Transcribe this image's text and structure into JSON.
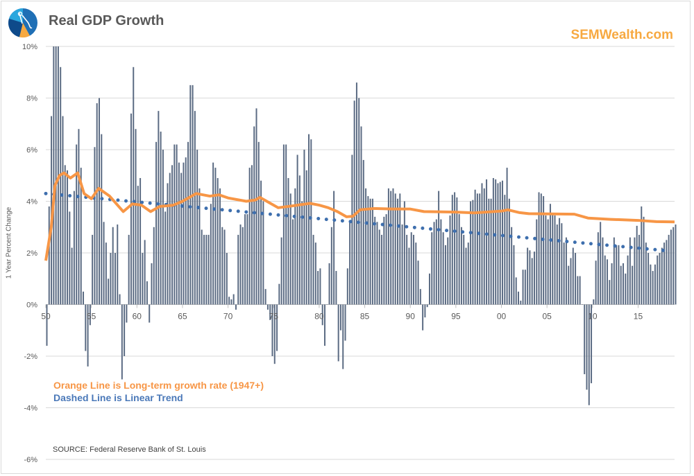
{
  "header": {
    "title": "Real GDP Growth",
    "brand": "SEMWealth.com",
    "logo_icon": "pie-chart-compass-logo"
  },
  "legend": {
    "orange_note": "Orange Line is Long-term growth rate (1947+)",
    "blue_note": "Dashed Line is Linear Trend"
  },
  "source": "SOURCE:  Federal Reserve Bank of St. Louis",
  "colors": {
    "bars": "#5B6B83",
    "long_term_line": "#F79646",
    "trend_dots": "#3E6FAE",
    "brand": "#F7A941",
    "grid": "#d9d9d9"
  },
  "chart_data": {
    "type": "bar",
    "title": "Real GDP Growth",
    "ylabel": "1 Year Percent Change",
    "xlabel": "",
    "ylim": [
      -6,
      10
    ],
    "xlim": [
      1950,
      2019
    ],
    "grid": true,
    "y_ticks": [
      "-6%",
      "-4%",
      "-2%",
      "0%",
      "2%",
      "4%",
      "6%",
      "8%",
      "10%"
    ],
    "y_tick_values": [
      -6,
      -4,
      -2,
      0,
      2,
      4,
      6,
      8,
      10
    ],
    "x_ticks": [
      "50",
      "55",
      "60",
      "65",
      "70",
      "75",
      "80",
      "85",
      "90",
      "95",
      "00",
      "05",
      "10",
      "15"
    ],
    "x_tick_values": [
      1950,
      1955,
      1960,
      1965,
      1970,
      1975,
      1980,
      1985,
      1990,
      1995,
      2000,
      2005,
      2010,
      2015
    ],
    "quarterly_values": {
      "1950": [
        -1.6,
        3.8,
        7.3,
        12.0
      ],
      "1951": [
        11.1,
        10.5,
        9.2,
        7.3
      ],
      "1952": [
        5.4,
        5.2,
        3.6,
        2.2
      ],
      "1953": [
        4.4,
        6.2,
        6.8,
        5.3
      ],
      "1954": [
        0.5,
        -1.8,
        -2.4,
        -0.8
      ],
      "1955": [
        2.7,
        6.1,
        7.8,
        8.0
      ],
      "1956": [
        6.6,
        3.2,
        2.4,
        1.0
      ],
      "1957": [
        2.0,
        3.0,
        2.0,
        3.1
      ],
      "1958": [
        0.4,
        -2.9,
        -2.0,
        -0.7
      ],
      "1959": [
        2.7,
        7.4,
        9.2,
        6.8
      ],
      "1960": [
        4.6,
        4.9,
        2.0,
        2.5
      ],
      "1961": [
        0.9,
        -0.7,
        1.6,
        3.0
      ],
      "1962": [
        6.3,
        7.5,
        6.7,
        6.0
      ],
      "1963": [
        3.6,
        4.7,
        5.1,
        5.4
      ],
      "1964": [
        6.2,
        6.2,
        5.5,
        5.1
      ],
      "1965": [
        5.5,
        5.7,
        6.3,
        8.5
      ],
      "1966": [
        8.5,
        7.5,
        6.0,
        4.5
      ],
      "1967": [
        2.9,
        2.7,
        2.7,
        2.7
      ],
      "1968": [
        3.9,
        5.5,
        5.3,
        4.9
      ],
      "1969": [
        4.5,
        3.0,
        2.9,
        2.0
      ],
      "1970": [
        0.3,
        0.2,
        0.4,
        -0.2
      ],
      "1971": [
        2.7,
        3.1,
        3.0,
        3.5
      ],
      "1972": [
        3.5,
        5.3,
        5.4,
        6.9
      ],
      "1973": [
        7.6,
        6.3,
        4.8,
        4.0
      ],
      "1974": [
        0.6,
        -0.2,
        -0.6,
        -2.0
      ],
      "1975": [
        -2.3,
        -1.8,
        0.8,
        2.6
      ],
      "1976": [
        6.2,
        6.2,
        4.9,
        4.3
      ],
      "1977": [
        3.3,
        4.5,
        5.8,
        5.0
      ],
      "1978": [
        4.0,
        6.0,
        5.2,
        6.6
      ],
      "1979": [
        6.4,
        2.7,
        2.4,
        1.3
      ],
      "1980": [
        1.4,
        -0.8,
        -1.6,
        0.0
      ],
      "1981": [
        1.6,
        3.0,
        4.4,
        1.3
      ],
      "1982": [
        -2.2,
        -1.0,
        -2.5,
        -1.4
      ],
      "1983": [
        1.4,
        3.2,
        5.8,
        7.9
      ],
      "1984": [
        8.6,
        8.0,
        6.9,
        5.6
      ],
      "1985": [
        4.5,
        4.2,
        4.1,
        4.1
      ],
      "1986": [
        3.4,
        3.2,
        2.9,
        2.7
      ],
      "1987": [
        3.4,
        3.5,
        4.5,
        4.4
      ],
      "1988": [
        4.5,
        4.3,
        4.1,
        4.3
      ],
      "1989": [
        3.1,
        4.0,
        2.7,
        2.2
      ],
      "1990": [
        2.8,
        2.7,
        2.4,
        1.7
      ],
      "1991": [
        0.6,
        -1.0,
        -0.5,
        -0.1
      ],
      "1992": [
        1.2,
        2.8,
        3.2,
        3.3
      ],
      "1993": [
        4.4,
        3.3,
        2.8,
        2.3
      ],
      "1994": [
        2.6,
        3.45,
        4.25,
        4.35
      ],
      "1995": [
        4.15,
        3.5,
        3.0,
        2.7
      ],
      "1996": [
        2.2,
        2.4,
        4.0,
        4.05
      ],
      "1997": [
        4.45,
        4.3,
        4.3,
        4.7
      ],
      "1998": [
        4.5,
        4.85,
        4.1,
        4.1
      ],
      "1999": [
        4.9,
        4.85,
        4.7,
        4.75
      ],
      "2000": [
        4.8,
        4.25,
        5.3,
        4.1
      ],
      "2001": [
        3.0,
        2.3,
        1.05,
        0.5
      ],
      "2002": [
        0.15,
        1.35,
        1.35,
        2.2
      ],
      "2003": [
        2.1,
        1.8,
        2.05,
        3.3
      ],
      "2004": [
        4.35,
        4.3,
        4.2,
        3.45
      ],
      "2005": [
        3.3,
        3.9,
        3.5,
        3.45
      ],
      "2006": [
        3.1,
        3.35,
        3.15,
        2.4
      ],
      "2007": [
        2.6,
        1.5,
        1.8,
        2.2
      ],
      "2008": [
        2.0,
        1.1,
        1.1,
        0.0
      ],
      "2009": [
        -2.7,
        -3.3,
        -3.9,
        -3.05
      ],
      "2010": [
        0.2,
        1.7,
        2.8,
        3.2
      ],
      "2011": [
        2.6,
        1.9,
        1.75,
        0.95
      ],
      "2012": [
        1.6,
        2.6,
        2.3,
        2.3
      ],
      "2013": [
        1.5,
        1.6,
        1.2,
        1.9
      ],
      "2014": [
        2.6,
        1.5,
        2.6,
        3.05
      ],
      "2015": [
        2.7,
        3.8,
        3.4,
        2.4
      ],
      "2016": [
        2.0,
        1.55,
        1.3,
        1.55
      ],
      "2017": [
        1.9,
        2.0,
        2.2,
        2.4
      ],
      "2018": [
        2.5,
        2.7,
        2.9,
        3.0
      ],
      "2019": [
        3.1
      ]
    },
    "long_term_growth_line": [
      [
        1950,
        1.7
      ],
      [
        1950.6,
        3.0
      ],
      [
        1951,
        4.6
      ],
      [
        1951.5,
        5.0
      ],
      [
        1952,
        5.1
      ],
      [
        1952.7,
        4.9
      ],
      [
        1953.5,
        5.1
      ],
      [
        1954.2,
        4.3
      ],
      [
        1955,
        4.1
      ],
      [
        1955.8,
        4.5
      ],
      [
        1957,
        4.2
      ],
      [
        1958,
        3.8
      ],
      [
        1958.5,
        3.6
      ],
      [
        1959.5,
        3.9
      ],
      [
        1960.5,
        3.85
      ],
      [
        1961.5,
        3.6
      ],
      [
        1962.5,
        3.8
      ],
      [
        1964,
        3.85
      ],
      [
        1965,
        4.0
      ],
      [
        1966.5,
        4.3
      ],
      [
        1968,
        4.2
      ],
      [
        1969,
        4.25
      ],
      [
        1970,
        4.13
      ],
      [
        1972,
        4.0
      ],
      [
        1973,
        4.05
      ],
      [
        1973.5,
        4.15
      ],
      [
        1974.5,
        3.95
      ],
      [
        1975.5,
        3.75
      ],
      [
        1977,
        3.82
      ],
      [
        1979,
        3.92
      ],
      [
        1980,
        3.85
      ],
      [
        1981,
        3.75
      ],
      [
        1982,
        3.6
      ],
      [
        1983,
        3.4
      ],
      [
        1983.7,
        3.42
      ],
      [
        1984.5,
        3.67
      ],
      [
        1986,
        3.72
      ],
      [
        1988,
        3.7
      ],
      [
        1990,
        3.7
      ],
      [
        1991.5,
        3.6
      ],
      [
        1995,
        3.58
      ],
      [
        1997,
        3.55
      ],
      [
        2000,
        3.62
      ],
      [
        2000.7,
        3.67
      ],
      [
        2002,
        3.56
      ],
      [
        2003,
        3.52
      ],
      [
        2008,
        3.5
      ],
      [
        2009.5,
        3.35
      ],
      [
        2012,
        3.3
      ],
      [
        2015,
        3.26
      ],
      [
        2017,
        3.21
      ],
      [
        2019,
        3.2
      ]
    ],
    "linear_trend": [
      [
        1950,
        4.3
      ],
      [
        2018.3,
        2.08
      ]
    ]
  }
}
